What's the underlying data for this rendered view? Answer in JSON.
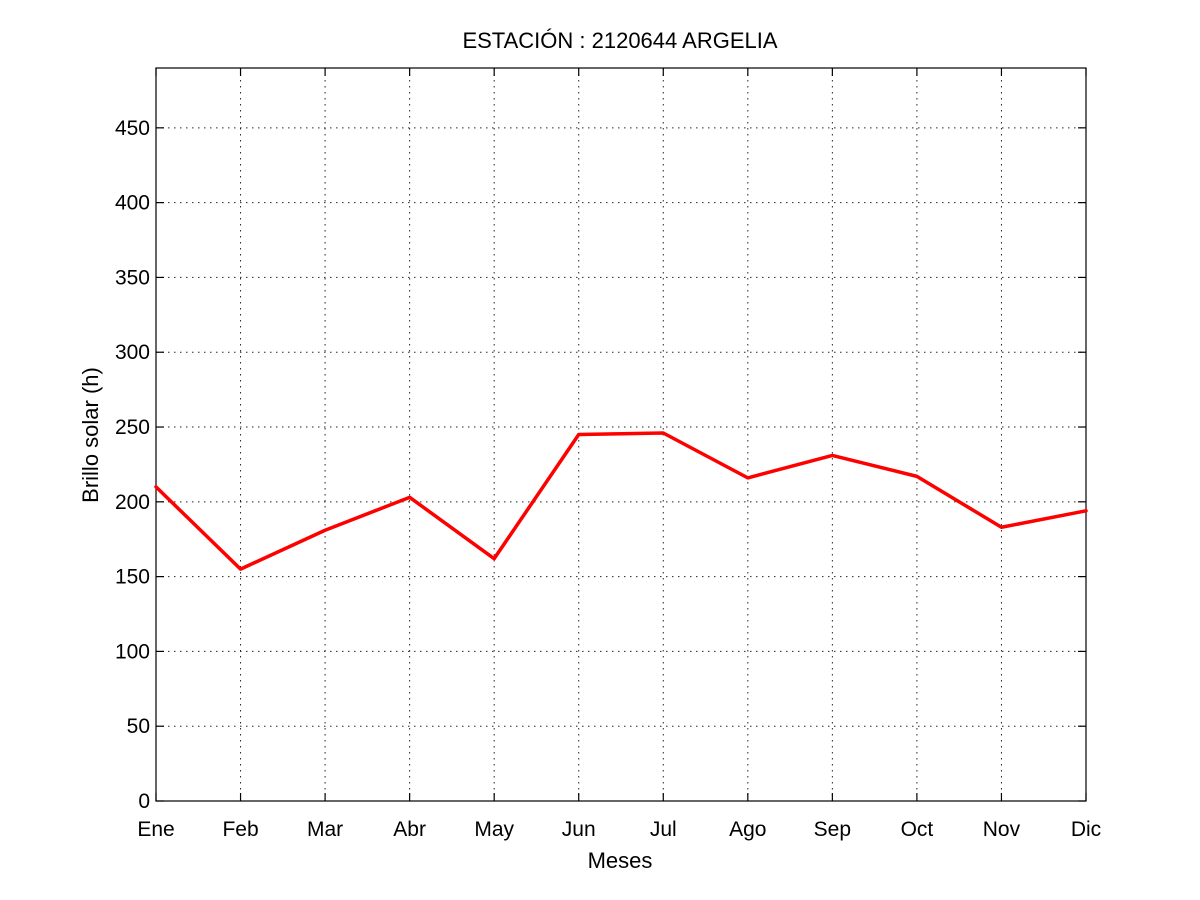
{
  "chart_data": {
    "type": "line",
    "title": "ESTACIÓN :  2120644  ARGELIA",
    "xlabel": "Meses",
    "ylabel": "Brillo solar (h)",
    "categories": [
      "Ene",
      "Feb",
      "Mar",
      "Abr",
      "May",
      "Jun",
      "Jul",
      "Ago",
      "Sep",
      "Oct",
      "Nov",
      "Dic"
    ],
    "ylim": [
      0,
      490
    ],
    "yticks": [
      0,
      50,
      100,
      150,
      200,
      250,
      300,
      350,
      400,
      450
    ],
    "grid": true,
    "series": [
      {
        "values": [
          210,
          155,
          181,
          203,
          162,
          245,
          246,
          216,
          231,
          217,
          183,
          194
        ],
        "color": "#ff0000"
      }
    ]
  }
}
